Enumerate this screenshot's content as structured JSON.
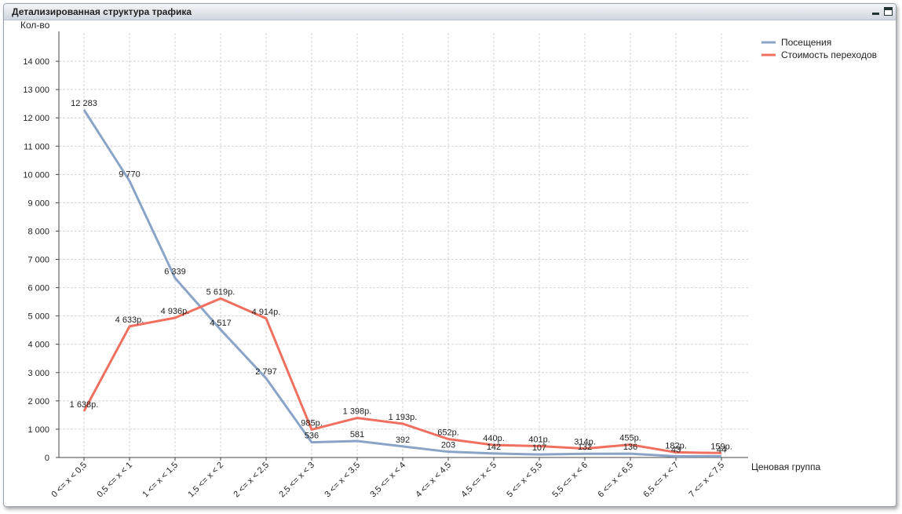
{
  "window": {
    "title": "Детализированная структура трафика"
  },
  "chart_data": {
    "type": "line",
    "ylabel": "Кол-во",
    "xlabel": "Ценовая группа",
    "ylim": [
      0,
      15000
    ],
    "yticks": [
      0,
      1000,
      2000,
      3000,
      4000,
      5000,
      6000,
      7000,
      8000,
      9000,
      10000,
      11000,
      12000,
      13000,
      14000
    ],
    "ytick_labels": [
      "0",
      "1 000",
      "2 000",
      "3 000",
      "4 000",
      "5 000",
      "6 000",
      "7 000",
      "8 000",
      "9 000",
      "10 000",
      "11 000",
      "12 000",
      "13 000",
      "14 000"
    ],
    "grid": true,
    "legend_position": "top-right",
    "categories": [
      "0 <= x < 0,5",
      "0,5 <= x < 1",
      "1 <= x < 1,5",
      "1,5 <= x < 2",
      "2 <= x < 2,5",
      "2,5 <= x < 3",
      "3 <= x < 3,5",
      "3,5 <= x < 4",
      "4 <= x < 4,5",
      "4,5 <= x < 5",
      "5 <= x < 5,5",
      "5,5 <= x < 6",
      "6 <= x < 6,5",
      "6,5 <= x < 7",
      "7 <= x < 7,5"
    ],
    "series": [
      {
        "name": "Посещения",
        "color": "#8aa4c8",
        "values": [
          12283,
          9770,
          6339,
          4517,
          2797,
          536,
          581,
          392,
          203,
          142,
          107,
          132,
          136,
          43,
          44
        ],
        "labels": [
          "12 283",
          "9 770",
          "6 339",
          "4 517",
          "2 797",
          "536",
          "581",
          "392",
          "203",
          "142",
          "107",
          "132",
          "136",
          "43",
          "44"
        ]
      },
      {
        "name": "Стоимость переходов",
        "color": "#f07060",
        "values": [
          1638,
          4633,
          4936,
          5619,
          4914,
          985,
          1398,
          1193,
          652,
          440,
          401,
          314,
          455,
          182,
          159
        ],
        "labels": [
          "1 638р.",
          "4 633р.",
          "4 936р.",
          "5 619р.",
          "4 914р.",
          "985р.",
          "1 398р.",
          "1 193р.",
          "652р.",
          "440р.",
          "401р.",
          "314р.",
          "455р.",
          "182р.",
          "159р."
        ]
      }
    ]
  }
}
